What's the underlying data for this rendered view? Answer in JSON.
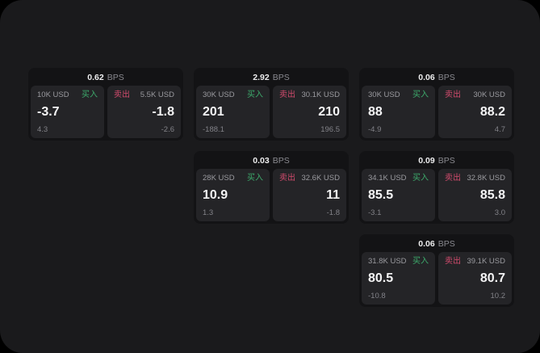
{
  "labels": {
    "bps_unit": "BPS",
    "buy": "买入",
    "sell": "卖出"
  },
  "colors": {
    "background": "#000000",
    "panel": "#1a1a1c",
    "card": "#131315",
    "tile": "#242427",
    "buy_green": "#3dab6c",
    "sell_red": "#d24b6d",
    "primary_text": "#f4f4f5",
    "muted_text": "#9a9a9f"
  },
  "cards": [
    {
      "bps": "0.62",
      "buy_amount": "10K USD",
      "buy_price": "-3.7",
      "buy_change": "4.3",
      "sell_amount": "5.5K USD",
      "sell_price": "-1.8",
      "sell_change": "-2.6"
    },
    {
      "bps": "2.92",
      "buy_amount": "30K USD",
      "buy_price": "201",
      "buy_change": "-188.1",
      "sell_amount": "30.1K USD",
      "sell_price": "210",
      "sell_change": "196.5"
    },
    {
      "bps": "0.06",
      "buy_amount": "30K USD",
      "buy_price": "88",
      "buy_change": "-4.9",
      "sell_amount": "30K USD",
      "sell_price": "88.2",
      "sell_change": "4.7"
    },
    {
      "bps": "0.03",
      "buy_amount": "28K USD",
      "buy_price": "10.9",
      "buy_change": "1.3",
      "sell_amount": "32.6K USD",
      "sell_price": "11",
      "sell_change": "-1.8"
    },
    {
      "bps": "0.09",
      "buy_amount": "34.1K USD",
      "buy_price": "85.5",
      "buy_change": "-3.1",
      "sell_amount": "32.8K USD",
      "sell_price": "85.8",
      "sell_change": "3.0"
    },
    {
      "bps": "0.06",
      "buy_amount": "31.8K USD",
      "buy_price": "80.5",
      "buy_change": "-10.8",
      "sell_amount": "39.1K USD",
      "sell_price": "80.7",
      "sell_change": "10.2"
    }
  ]
}
